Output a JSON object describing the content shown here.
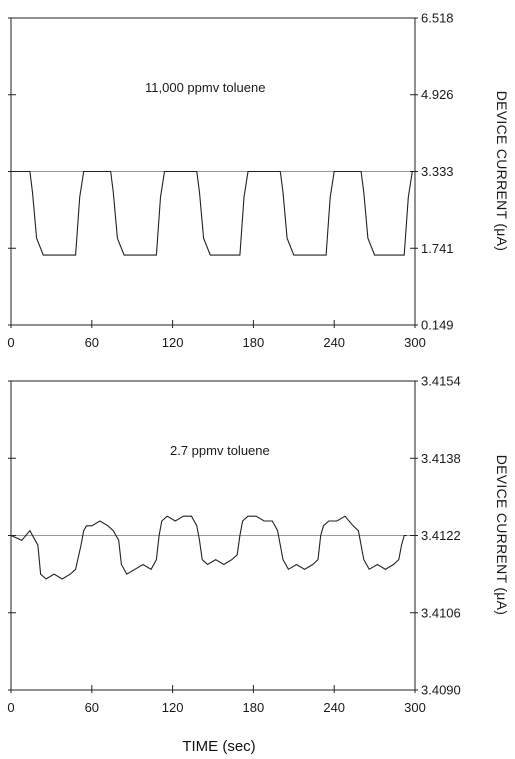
{
  "chart_data": [
    {
      "type": "line",
      "annotation": "11,000 ppmv toluene",
      "ylabel": "DEVICE CURRENT (μA)",
      "xlim": [
        0,
        300
      ],
      "ylim": [
        0.149,
        6.518
      ],
      "x_ticks": [
        0,
        60,
        120,
        180,
        240,
        300
      ],
      "y_ticks": [
        6.518,
        4.926,
        3.333,
        1.741,
        0.149
      ],
      "y_tick_labels": [
        "6.518",
        "4.926",
        "3.333",
        "1.741",
        "0.149"
      ],
      "x_tick_labels": [
        "0",
        "60",
        "120",
        "180",
        "240",
        "300"
      ],
      "baseline": 3.333,
      "series": [
        {
          "x": [
            0,
            14,
            16,
            19,
            24,
            48,
            51,
            54,
            74,
            76,
            79,
            84,
            108,
            111,
            114,
            138,
            140,
            143,
            148,
            170,
            173,
            176,
            200,
            202,
            205,
            210,
            234,
            237,
            240,
            260,
            262,
            265,
            270,
            292,
            295,
            298,
            300
          ],
          "y": [
            3.333,
            3.333,
            2.9,
            1.95,
            1.6,
            1.6,
            2.8,
            3.333,
            3.333,
            2.9,
            1.95,
            1.6,
            1.6,
            2.8,
            3.333,
            3.333,
            2.9,
            1.95,
            1.6,
            1.6,
            2.8,
            3.333,
            3.333,
            2.9,
            1.95,
            1.6,
            1.6,
            2.8,
            3.333,
            3.333,
            2.9,
            1.95,
            1.6,
            1.6,
            2.8,
            3.333,
            3.333
          ]
        }
      ]
    },
    {
      "type": "line",
      "annotation": "2.7 ppmv toluene",
      "ylabel": "DEVICE CURRENT (μA)",
      "xlabel": "TIME (sec)",
      "xlim": [
        0,
        300
      ],
      "ylim": [
        3.409,
        3.4154
      ],
      "x_ticks": [
        0,
        60,
        120,
        180,
        240,
        300
      ],
      "y_ticks": [
        3.4154,
        3.4138,
        3.4122,
        3.4106,
        3.409
      ],
      "y_tick_labels": [
        "3.4154",
        "3.4138",
        "3.4122",
        "3.4106",
        "3.4090"
      ],
      "x_tick_labels": [
        "0",
        "60",
        "120",
        "180",
        "240",
        "300"
      ],
      "baseline": 3.4122,
      "series": [
        {
          "x": [
            0,
            8,
            14,
            20,
            22,
            26,
            32,
            38,
            44,
            48,
            52,
            54,
            56,
            60,
            66,
            72,
            76,
            80,
            82,
            86,
            92,
            98,
            104,
            108,
            110,
            112,
            116,
            122,
            128,
            134,
            138,
            140,
            142,
            146,
            152,
            158,
            164,
            168,
            170,
            172,
            176,
            182,
            188,
            194,
            198,
            200,
            202,
            206,
            212,
            218,
            224,
            228,
            230,
            232,
            236,
            242,
            248,
            254,
            258,
            260,
            262,
            266,
            272,
            278,
            284,
            288,
            290,
            292,
            294
          ],
          "y": [
            3.4122,
            3.4121,
            3.4123,
            3.412,
            3.4114,
            3.4113,
            3.4114,
            3.4113,
            3.4114,
            3.4115,
            3.412,
            3.4123,
            3.4124,
            3.4124,
            3.4125,
            3.4124,
            3.4123,
            3.4121,
            3.4116,
            3.4114,
            3.4115,
            3.4116,
            3.4115,
            3.4117,
            3.4122,
            3.4125,
            3.4126,
            3.4125,
            3.4126,
            3.4126,
            3.4124,
            3.4121,
            3.4117,
            3.4116,
            3.4117,
            3.4116,
            3.4117,
            3.4118,
            3.4122,
            3.4125,
            3.4126,
            3.4126,
            3.4125,
            3.4125,
            3.4123,
            3.412,
            3.4117,
            3.4115,
            3.4116,
            3.4115,
            3.4116,
            3.4117,
            3.4122,
            3.4124,
            3.4125,
            3.4125,
            3.4126,
            3.4124,
            3.4123,
            3.412,
            3.4117,
            3.4115,
            3.4116,
            3.4115,
            3.4116,
            3.4117,
            3.412,
            3.4122,
            3.4122
          ]
        }
      ]
    }
  ]
}
